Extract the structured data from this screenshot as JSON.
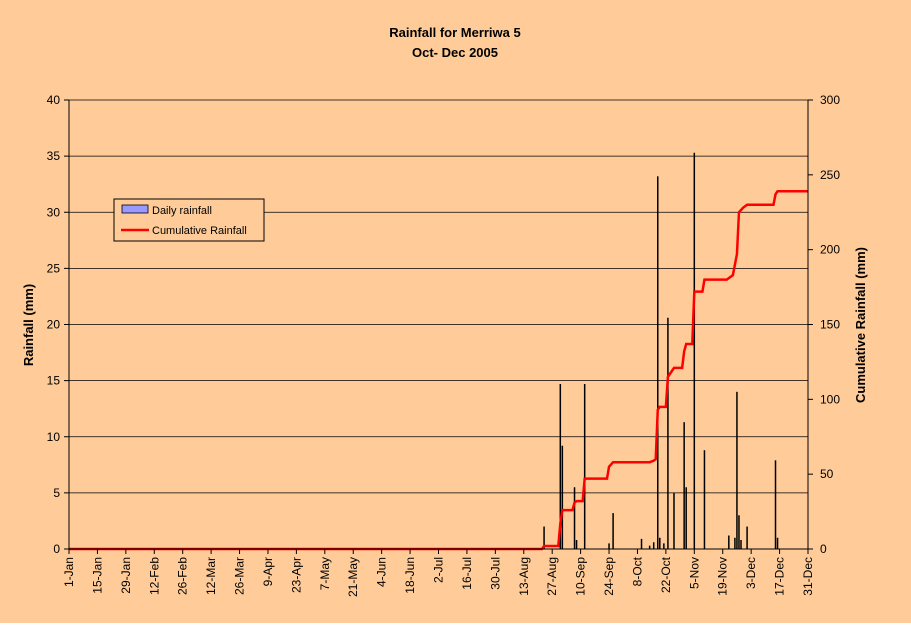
{
  "colors": {
    "background": "#FFCC99",
    "grid": "#000000",
    "bar": "#000000",
    "cumulative": "#FF0000",
    "legend_bar_fill": "#9999FF"
  },
  "chart_data": {
    "type": "bar",
    "title": "Rainfall for Merriwa 5",
    "subtitle": "Oct- Dec 2005",
    "ylabel": "Rainfall (mm)",
    "y2label": "Cumulative Rainfall (mm)",
    "ylim": [
      0,
      40
    ],
    "y2lim": [
      0,
      300
    ],
    "yticks": [
      0,
      5,
      10,
      15,
      20,
      25,
      30,
      35,
      40
    ],
    "y2ticks": [
      0,
      50,
      100,
      150,
      200,
      250,
      300
    ],
    "grid": true,
    "legend_position": "upper-left",
    "x_day_range": [
      1,
      365
    ],
    "xtick_labels": [
      "1-Jan",
      "15-Jan",
      "29-Jan",
      "12-Feb",
      "26-Feb",
      "12-Mar",
      "26-Mar",
      "9-Apr",
      "23-Apr",
      "7-May",
      "21-May",
      "4-Jun",
      "18-Jun",
      "2-Jul",
      "16-Jul",
      "30-Jul",
      "13-Aug",
      "27-Aug",
      "10-Sep",
      "24-Sep",
      "8-Oct",
      "22-Oct",
      "5-Nov",
      "19-Nov",
      "3-Dec",
      "17-Dec",
      "31-Dec"
    ],
    "series": [
      {
        "name": "Daily rainfall",
        "kind": "bar",
        "axis": "left",
        "points": [
          {
            "day": 235,
            "value": 2.0
          },
          {
            "day": 243,
            "value": 14.7
          },
          {
            "day": 244,
            "value": 9.2
          },
          {
            "day": 250,
            "value": 5.5
          },
          {
            "day": 251,
            "value": 0.8
          },
          {
            "day": 255,
            "value": 14.7
          },
          {
            "day": 267,
            "value": 0.5
          },
          {
            "day": 269,
            "value": 3.2
          },
          {
            "day": 283,
            "value": 0.9
          },
          {
            "day": 287,
            "value": 0.3
          },
          {
            "day": 289,
            "value": 0.6
          },
          {
            "day": 291,
            "value": 33.2
          },
          {
            "day": 292,
            "value": 1.0
          },
          {
            "day": 294,
            "value": 0.5
          },
          {
            "day": 296,
            "value": 20.6
          },
          {
            "day": 299,
            "value": 5.0
          },
          {
            "day": 304,
            "value": 11.3
          },
          {
            "day": 305,
            "value": 5.5
          },
          {
            "day": 309,
            "value": 35.3
          },
          {
            "day": 314,
            "value": 8.8
          },
          {
            "day": 326,
            "value": 1.2
          },
          {
            "day": 329,
            "value": 1.0
          },
          {
            "day": 330,
            "value": 14.0
          },
          {
            "day": 331,
            "value": 3.0
          },
          {
            "day": 332,
            "value": 0.8
          },
          {
            "day": 335,
            "value": 2.0
          },
          {
            "day": 349,
            "value": 7.9
          },
          {
            "day": 350,
            "value": 1.0
          }
        ]
      },
      {
        "name": "Cumulative Rainfall",
        "kind": "line",
        "axis": "right",
        "points": [
          {
            "day": 1,
            "value": 0
          },
          {
            "day": 234,
            "value": 0
          },
          {
            "day": 235,
            "value": 2
          },
          {
            "day": 242,
            "value": 2
          },
          {
            "day": 243,
            "value": 17
          },
          {
            "day": 244,
            "value": 26
          },
          {
            "day": 249,
            "value": 26
          },
          {
            "day": 250,
            "value": 31
          },
          {
            "day": 251,
            "value": 32
          },
          {
            "day": 254,
            "value": 32
          },
          {
            "day": 255,
            "value": 47
          },
          {
            "day": 266,
            "value": 47
          },
          {
            "day": 267,
            "value": 55
          },
          {
            "day": 269,
            "value": 58
          },
          {
            "day": 287,
            "value": 58
          },
          {
            "day": 289,
            "value": 59
          },
          {
            "day": 290,
            "value": 60
          },
          {
            "day": 291,
            "value": 93
          },
          {
            "day": 292,
            "value": 95
          },
          {
            "day": 295,
            "value": 95
          },
          {
            "day": 296,
            "value": 115
          },
          {
            "day": 297,
            "value": 117
          },
          {
            "day": 299,
            "value": 121
          },
          {
            "day": 303,
            "value": 121
          },
          {
            "day": 304,
            "value": 132
          },
          {
            "day": 305,
            "value": 137
          },
          {
            "day": 308,
            "value": 137
          },
          {
            "day": 309,
            "value": 172
          },
          {
            "day": 313,
            "value": 172
          },
          {
            "day": 314,
            "value": 180
          },
          {
            "day": 325,
            "value": 180
          },
          {
            "day": 327,
            "value": 182
          },
          {
            "day": 328,
            "value": 183
          },
          {
            "day": 330,
            "value": 197
          },
          {
            "day": 331,
            "value": 225
          },
          {
            "day": 333,
            "value": 228
          },
          {
            "day": 335,
            "value": 230
          },
          {
            "day": 348,
            "value": 230
          },
          {
            "day": 349,
            "value": 237
          },
          {
            "day": 350,
            "value": 239
          },
          {
            "day": 365,
            "value": 239
          }
        ]
      }
    ]
  }
}
